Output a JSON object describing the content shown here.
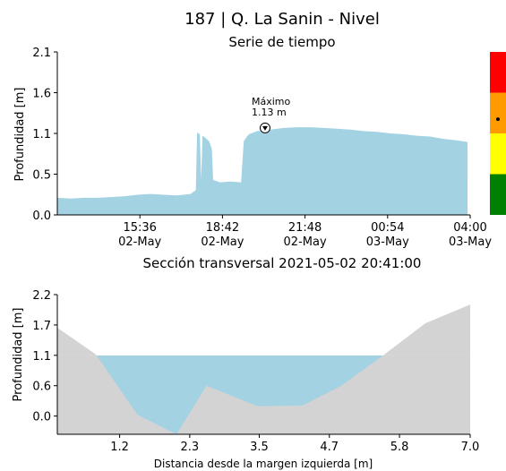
{
  "figure": {
    "title": "187 | Q. La Sanin - Nivel"
  },
  "chart_data": [
    {
      "type": "area",
      "title": "Serie de tiempo",
      "ylabel": "Profundidad [m]",
      "xlabel": "",
      "ylim": [
        0,
        2.1
      ],
      "y_ticks": [
        "0.0",
        "0.5",
        "1.1",
        "1.6",
        "2.1"
      ],
      "y_tick_values": [
        0,
        0.525,
        1.05,
        1.575,
        2.1
      ],
      "x_ticks": [
        {
          "hour": 15.6,
          "line1": "15:36",
          "line2": "02-May"
        },
        {
          "hour": 18.7,
          "line1": "18:42",
          "line2": "02-May"
        },
        {
          "hour": 21.8,
          "line1": "21:48",
          "line2": "02-May"
        },
        {
          "hour": 24.9,
          "line1": "00:54",
          "line2": "03-May"
        },
        {
          "hour": 28.0,
          "line1": "04:00",
          "line2": "03-May"
        }
      ],
      "xlim_hours": [
        12.5,
        28.0
      ],
      "fill_color": "#a3d2e2",
      "grid": false,
      "series": [
        {
          "x_hours": [
            12.5,
            13.0,
            13.5,
            14.0,
            14.5,
            15.0,
            15.5,
            16.0,
            16.5,
            17.0,
            17.5,
            17.7,
            17.75,
            17.85,
            17.9,
            17.95,
            18.0,
            18.2,
            18.3,
            18.35,
            18.45,
            18.6,
            19.0,
            19.4,
            19.5,
            19.6,
            19.7,
            20.0,
            20.5,
            21.0,
            21.5,
            22.0,
            22.5,
            23.0,
            23.5,
            24.0,
            24.5,
            25.0,
            25.5,
            26.0,
            26.5,
            27.0,
            27.5,
            27.9
          ],
          "y": [
            0.22,
            0.21,
            0.22,
            0.22,
            0.23,
            0.24,
            0.26,
            0.27,
            0.26,
            0.25,
            0.27,
            0.32,
            1.06,
            1.04,
            0.45,
            1.02,
            1.01,
            0.95,
            0.85,
            0.45,
            0.44,
            0.42,
            0.43,
            0.42,
            0.95,
            1.0,
            1.04,
            1.08,
            1.1,
            1.12,
            1.13,
            1.13,
            1.12,
            1.11,
            1.1,
            1.08,
            1.07,
            1.05,
            1.04,
            1.02,
            1.01,
            0.98,
            0.96,
            0.94
          ]
        }
      ],
      "annotation": {
        "label": "Máximo",
        "value": "1.13 m",
        "hour": 20.3,
        "y": 1.12
      },
      "level_indicator": {
        "bands": [
          "#ff0000",
          "#ff9b00",
          "#ffff00",
          "#008000"
        ],
        "marker_band_index": 1,
        "marker_position": 0.65
      }
    },
    {
      "type": "area",
      "title": "Sección transversal 2021-05-02 20:41:00",
      "xlabel": "Distancia desde la margen izquierda [m]",
      "ylabel": "Profundidad [m]",
      "xlim": [
        0.11,
        7.0
      ],
      "ylim": [
        -0.33,
        2.2
      ],
      "x_ticks": [
        "1.2",
        "2.3",
        "3.5",
        "4.7",
        "5.8",
        "7.0"
      ],
      "x_tick_values": [
        1.15,
        2.32,
        3.48,
        4.65,
        5.82,
        7.0
      ],
      "y_ticks": [
        "0.0",
        "0.6",
        "1.1",
        "1.7",
        "2.2"
      ],
      "y_tick_values": [
        0,
        0.55,
        1.1,
        1.65,
        2.2
      ],
      "terrain_color": "#d3d3d3",
      "water_color": "#a3d2e2",
      "water_level": 1.1,
      "grid": false,
      "series": [
        {
          "x": [
            0.11,
            0.75,
            1.45,
            2.1,
            2.6,
            3.45,
            4.2,
            4.85,
            5.55,
            6.25,
            7.0
          ],
          "y": [
            1.6,
            1.12,
            0.02,
            -0.33,
            0.55,
            0.18,
            0.19,
            0.55,
            1.1,
            1.68,
            2.02
          ]
        }
      ]
    }
  ]
}
